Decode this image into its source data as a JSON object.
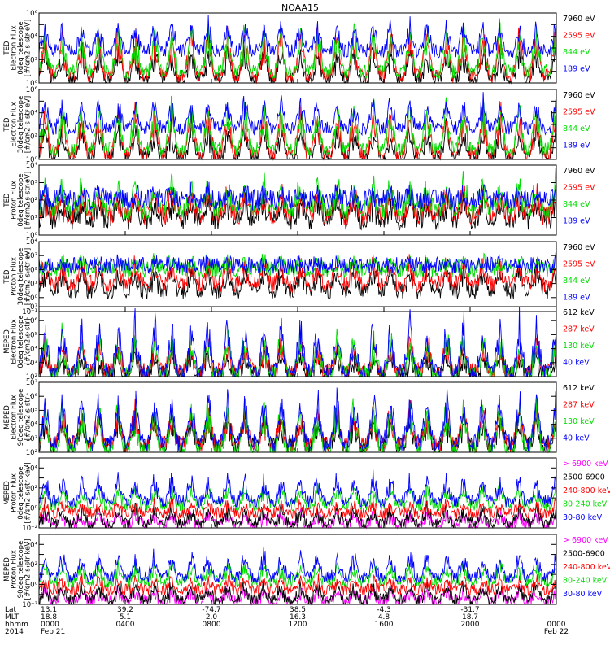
{
  "title": "NOAA15",
  "colors": {
    "black": "#000000",
    "red": "#ff0000",
    "green": "#00dd00",
    "blue": "#0000ff",
    "magenta": "#ff00ff"
  },
  "chart_data": [
    {
      "type": "line",
      "ylabel": [
        "TED",
        "Electron Flux",
        "0deg telescope",
        "[#/cm2-s-str-eV]"
      ],
      "y_scale": "log",
      "ylim": [
        1,
        1000000
      ],
      "yticks": [
        {
          "v": 1,
          "label": "10⁰"
        },
        {
          "v": 100,
          "label": "10²"
        },
        {
          "v": 10000,
          "label": "10⁴"
        },
        {
          "v": 1000000,
          "label": "10⁶"
        }
      ],
      "series": [
        {
          "name": "7960 eV",
          "color": "#000000",
          "base": 2,
          "spike": 1000
        },
        {
          "name": "2595 eV",
          "color": "#ff0000",
          "base": 4,
          "spike": 20000
        },
        {
          "name": "844 eV",
          "color": "#00dd00",
          "base": 10,
          "spike": 30000
        },
        {
          "name": "189 eV",
          "color": "#0000ff",
          "base": 600,
          "spike": 100000
        }
      ]
    },
    {
      "type": "line",
      "ylabel": [
        "TED",
        "Electron Flux",
        "30deg telescope",
        "[#/cm2-s-str-eV]"
      ],
      "y_scale": "log",
      "ylim": [
        1,
        1000000
      ],
      "yticks": [
        {
          "v": 1,
          "label": "10⁰"
        },
        {
          "v": 100,
          "label": "10²"
        },
        {
          "v": 10000,
          "label": "10⁴"
        },
        {
          "v": 1000000,
          "label": "10⁶"
        }
      ],
      "series": [
        {
          "name": "7960 eV",
          "color": "#000000",
          "base": 1.5,
          "spike": 800
        },
        {
          "name": "2595 eV",
          "color": "#ff0000",
          "base": 3,
          "spike": 20000
        },
        {
          "name": "844 eV",
          "color": "#00dd00",
          "base": 8,
          "spike": 40000
        },
        {
          "name": "189 eV",
          "color": "#0000ff",
          "base": 500,
          "spike": 100000
        }
      ]
    },
    {
      "type": "line",
      "ylabel": [
        "TED",
        "Proton Flux",
        "0deg telescope",
        "[#/cm2-s-str-eV]"
      ],
      "y_scale": "log",
      "ylim": [
        1,
        10000
      ],
      "yticks": [
        {
          "v": 1,
          "label": "10⁰"
        },
        {
          "v": 10,
          "label": "10¹"
        },
        {
          "v": 100,
          "label": "10²"
        },
        {
          "v": 1000,
          "label": "10³"
        },
        {
          "v": 10000,
          "label": "10⁴"
        }
      ],
      "series": [
        {
          "name": "7960 eV",
          "color": "#000000",
          "base": 8,
          "spike": 100
        },
        {
          "name": "2595 eV",
          "color": "#ff0000",
          "base": 15,
          "spike": 300
        },
        {
          "name": "844 eV",
          "color": "#00dd00",
          "base": 30,
          "spike": 1000
        },
        {
          "name": "189 eV",
          "color": "#0000ff",
          "base": 100,
          "spike": 300
        }
      ]
    },
    {
      "type": "line",
      "ylabel": [
        "TED",
        "Proton Flux",
        "30deg telescope",
        "[#/cm2-s-str-eV]"
      ],
      "y_scale": "log",
      "ylim": [
        0.1,
        10000
      ],
      "yticks": [
        {
          "v": 0.1,
          "label": "10⁻¹"
        },
        {
          "v": 1,
          "label": "10⁰"
        },
        {
          "v": 10,
          "label": "10¹"
        },
        {
          "v": 100,
          "label": "10²"
        },
        {
          "v": 1000,
          "label": "10³"
        },
        {
          "v": 10000,
          "label": "10⁴"
        }
      ],
      "series": [
        {
          "name": "7960 eV",
          "color": "#000000",
          "base": 3,
          "spike": 100
        },
        {
          "name": "2595 eV",
          "color": "#ff0000",
          "base": 10,
          "spike": 300
        },
        {
          "name": "844 eV",
          "color": "#00dd00",
          "base": 100,
          "spike": 500
        },
        {
          "name": "189 eV",
          "color": "#0000ff",
          "base": 200,
          "spike": 300
        }
      ]
    },
    {
      "type": "line",
      "ylabel": [
        "MEPED",
        "Electron Flux",
        "0deg telescope",
        "[#/cm2-s-str]"
      ],
      "y_scale": "log",
      "ylim": [
        100,
        10000000
      ],
      "yticks": [
        {
          "v": 100,
          "label": "10²"
        },
        {
          "v": 1000,
          "label": "10³"
        },
        {
          "v": 10000,
          "label": "10⁴"
        },
        {
          "v": 100000,
          "label": "10⁵"
        },
        {
          "v": 1000000,
          "label": "10⁶"
        },
        {
          "v": 10000000,
          "label": "10⁷"
        }
      ],
      "series": [
        {
          "name": "612 keV",
          "color": "#000000",
          "base": 150,
          "spike": 3000
        },
        {
          "name": "287 keV",
          "color": "#ff0000",
          "base": 250,
          "spike": 30000
        },
        {
          "name": "130 keV",
          "color": "#00dd00",
          "base": 150,
          "spike": 100000
        },
        {
          "name": "40 keV",
          "color": "#0000ff",
          "base": 200,
          "spike": 1000000
        }
      ]
    },
    {
      "type": "line",
      "ylabel": [
        "MEPED",
        "Electron Flux",
        "90deg telescope",
        "[#/cm2-s-str]"
      ],
      "y_scale": "log",
      "ylim": [
        100,
        10000000
      ],
      "yticks": [
        {
          "v": 100,
          "label": "10²"
        },
        {
          "v": 1000,
          "label": "10³"
        },
        {
          "v": 10000,
          "label": "10⁴"
        },
        {
          "v": 100000,
          "label": "10⁵"
        },
        {
          "v": 1000000,
          "label": "10⁶"
        },
        {
          "v": 10000000,
          "label": "10⁷"
        }
      ],
      "series": [
        {
          "name": "612 keV",
          "color": "#000000",
          "base": 300,
          "spike": 30000
        },
        {
          "name": "287 keV",
          "color": "#ff0000",
          "base": 400,
          "spike": 100000
        },
        {
          "name": "130 keV",
          "color": "#00dd00",
          "base": 150,
          "spike": 300000
        },
        {
          "name": "40 keV",
          "color": "#0000ff",
          "base": 500,
          "spike": 1000000
        }
      ]
    },
    {
      "type": "line",
      "ylabel": [
        "MEPED",
        "Proton Flux",
        "0deg telescope",
        "[#/cm2-s-str-keV]"
      ],
      "y_scale": "log",
      "ylim": [
        0.01,
        100000
      ],
      "yticks": [
        {
          "v": 0.01,
          "label": "10⁻²"
        },
        {
          "v": 1,
          "label": "10⁰"
        },
        {
          "v": 100,
          "label": "10²"
        },
        {
          "v": 10000,
          "label": "10⁴"
        }
      ],
      "series": [
        {
          "name": "> 6900 keV",
          "color": "#ff00ff",
          "base": 0.02,
          "spike": 0.3
        },
        {
          "name": "2500-6900",
          "color": "#000000",
          "base": 0.03,
          "spike": 1
        },
        {
          "name": "240-800 keV",
          "color": "#ff0000",
          "base": 0.3,
          "spike": 3
        },
        {
          "name": "80-240 keV",
          "color": "#00dd00",
          "base": 2,
          "spike": 100
        },
        {
          "name": "30-80 keV",
          "color": "#0000ff",
          "base": 5,
          "spike": 1000
        }
      ]
    },
    {
      "type": "line",
      "ylabel": [
        "MEPED",
        "Proton Flux",
        "90deg telescope",
        "[#/cm2-s-str-keV]"
      ],
      "y_scale": "log",
      "ylim": [
        0.01,
        100000
      ],
      "yticks": [
        {
          "v": 0.01,
          "label": "10⁻²"
        },
        {
          "v": 1,
          "label": "10⁰"
        },
        {
          "v": 100,
          "label": "10²"
        },
        {
          "v": 10000,
          "label": "10⁴"
        }
      ],
      "series": [
        {
          "name": "> 6900 keV",
          "color": "#ff00ff",
          "base": 0.02,
          "spike": 0.3
        },
        {
          "name": "2500-6900",
          "color": "#000000",
          "base": 0.03,
          "spike": 1
        },
        {
          "name": "240-800 keV",
          "color": "#ff0000",
          "base": 0.3,
          "spike": 3
        },
        {
          "name": "80-240 keV",
          "color": "#00dd00",
          "base": 2,
          "spike": 100
        },
        {
          "name": "30-80 keV",
          "color": "#0000ff",
          "base": 5,
          "spike": 1000
        }
      ]
    }
  ],
  "x_axis": {
    "row_labels": [
      "Lat",
      "MLT",
      "hhmm",
      "2014"
    ],
    "columns": [
      {
        "lat": "13.1",
        "mlt": "18.8",
        "hhmm": "0000",
        "date": "Feb 21"
      },
      {
        "lat": "39.2",
        "mlt": "5.1",
        "hhmm": "0400",
        "date": ""
      },
      {
        "lat": "-74.7",
        "mlt": "2.0",
        "hhmm": "0800",
        "date": ""
      },
      {
        "lat": "38.5",
        "mlt": "16.3",
        "hhmm": "1200",
        "date": ""
      },
      {
        "lat": "-4.3",
        "mlt": "4.8",
        "hhmm": "1600",
        "date": ""
      },
      {
        "lat": "-31.7",
        "mlt": "18.7",
        "hhmm": "2000",
        "date": ""
      },
      {
        "lat": "",
        "mlt": "",
        "hhmm": "0000",
        "date": "Feb 22"
      }
    ]
  }
}
